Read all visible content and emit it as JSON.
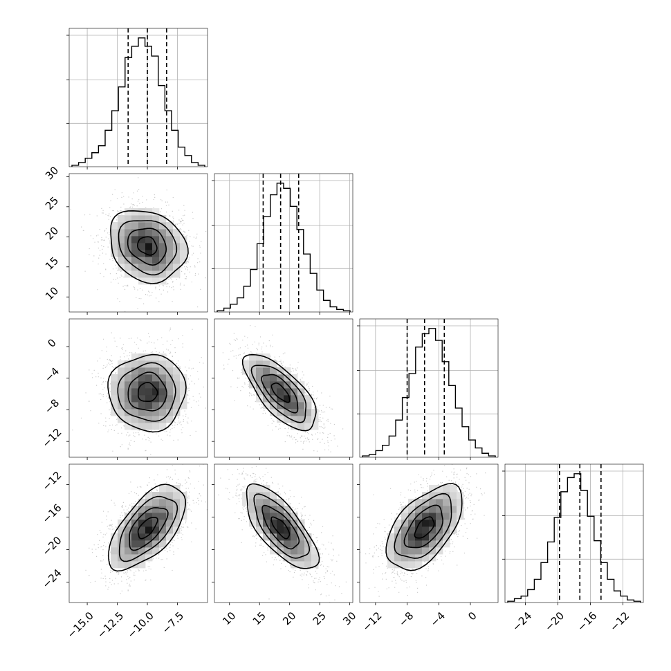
{
  "chart_data": {
    "type": "corner",
    "n_parameters": 4,
    "parameter_labels": [
      "",
      "",
      "",
      ""
    ],
    "axis_ranges": [
      [
        -16.5,
        -5.0
      ],
      [
        7.5,
        30.5
      ],
      [
        -14.0,
        3.5
      ],
      [
        -26.5,
        -9.5
      ]
    ],
    "ticks": [
      {
        "values": [
          -15.0,
          -12.5,
          -10.0,
          -7.5
        ],
        "labels": [
          "−15.0",
          "−12.5",
          "−10.0",
          "−7.5"
        ]
      },
      {
        "values": [
          10,
          15,
          20,
          25,
          30
        ],
        "labels": [
          "10",
          "15",
          "20",
          "25",
          "30"
        ]
      },
      {
        "values": [
          -12,
          -8,
          -4,
          0
        ],
        "labels": [
          "−12",
          "−8",
          "−4",
          "0"
        ]
      },
      {
        "values": [
          -24,
          -20,
          -16,
          -12
        ],
        "labels": [
          "−24",
          "−20",
          "−16",
          "−12"
        ]
      }
    ],
    "quantiles": [
      [
        -11.6,
        -10.0,
        -8.4
      ],
      [
        15.6,
        18.5,
        21.5
      ],
      [
        -8.0,
        -5.8,
        -3.3
      ],
      [
        -19.8,
        -17.3,
        -14.7
      ]
    ],
    "histograms": [
      {
        "counts": [
          0.01,
          0.03,
          0.06,
          0.1,
          0.15,
          0.26,
          0.4,
          0.57,
          0.78,
          0.86,
          0.92,
          0.86,
          0.79,
          0.58,
          0.4,
          0.26,
          0.14,
          0.08,
          0.03,
          0.01
        ]
      },
      {
        "counts": [
          0.01,
          0.03,
          0.06,
          0.11,
          0.2,
          0.33,
          0.53,
          0.74,
          0.91,
          1.0,
          0.96,
          0.82,
          0.64,
          0.45,
          0.3,
          0.17,
          0.09,
          0.04,
          0.02,
          0.01
        ]
      },
      {
        "counts": [
          0.01,
          0.02,
          0.05,
          0.09,
          0.16,
          0.28,
          0.45,
          0.63,
          0.83,
          0.93,
          0.97,
          0.88,
          0.72,
          0.54,
          0.37,
          0.23,
          0.13,
          0.07,
          0.03,
          0.01
        ]
      },
      {
        "counts": [
          0.01,
          0.03,
          0.05,
          0.1,
          0.18,
          0.31,
          0.47,
          0.66,
          0.86,
          0.97,
          1.0,
          0.87,
          0.67,
          0.48,
          0.31,
          0.18,
          0.09,
          0.05,
          0.02,
          0.01
        ]
      }
    ],
    "pairs": [
      {
        "row": 1,
        "col": 0,
        "mean": [
          -10.0,
          18.5
        ],
        "sd": [
          1.6,
          3.0
        ],
        "corr": -0.18
      },
      {
        "row": 2,
        "col": 0,
        "mean": [
          -10.0,
          -5.8
        ],
        "sd": [
          1.6,
          2.4
        ],
        "corr": 0.0
      },
      {
        "row": 2,
        "col": 1,
        "mean": [
          18.5,
          -5.8
        ],
        "sd": [
          3.0,
          2.4
        ],
        "corr": -0.7
      },
      {
        "row": 3,
        "col": 0,
        "mean": [
          -10.0,
          -17.3
        ],
        "sd": [
          1.6,
          2.6
        ],
        "corr": 0.62
      },
      {
        "row": 3,
        "col": 1,
        "mean": [
          18.5,
          -17.3
        ],
        "sd": [
          3.0,
          2.6
        ],
        "corr": -0.72
      },
      {
        "row": 3,
        "col": 2,
        "mean": [
          -5.8,
          -17.3
        ],
        "sd": [
          2.4,
          2.6
        ],
        "corr": 0.55
      }
    ],
    "contour_levels_sigma": [
      0.5,
      1.0,
      1.5,
      2.0
    ],
    "grid": true,
    "colors": {
      "contour": "#000000",
      "scatter": "#9e9e9e",
      "density_dark": "#000000",
      "grid": "#b0b0b0"
    }
  }
}
